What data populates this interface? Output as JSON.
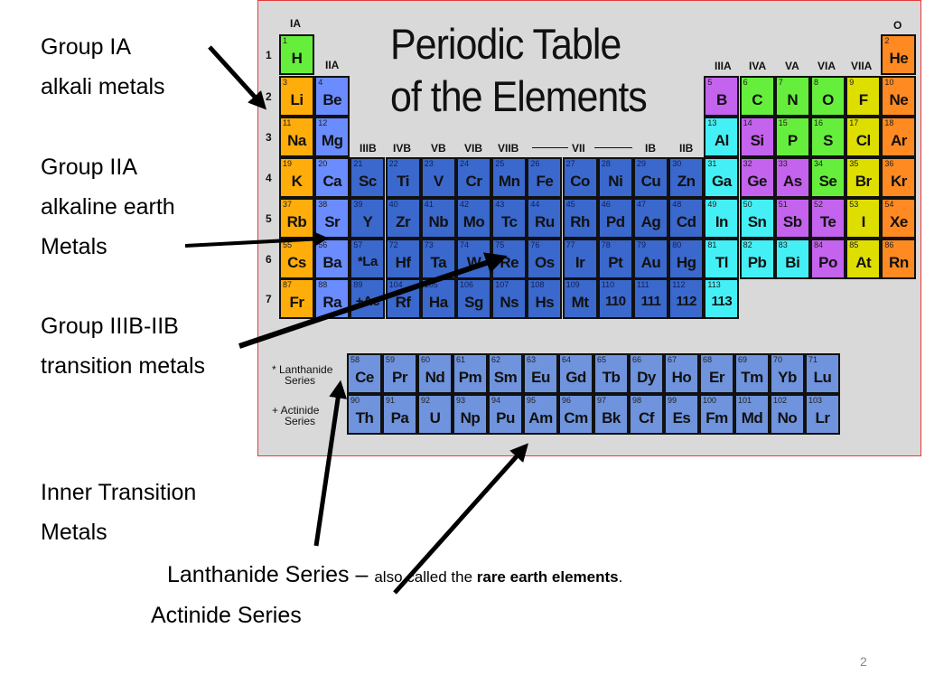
{
  "left_labels": [
    {
      "lines": [
        "Group IA",
        "alkali metals"
      ]
    },
    {
      "lines": [
        "Group IIA",
        "alkaline earth",
        "Metals"
      ]
    },
    {
      "lines": [
        "Group IIIB-IIB",
        "transition metals"
      ]
    },
    {
      "lines": [
        "Inner Transition",
        "Metals"
      ]
    }
  ],
  "bottom": {
    "lanthanide_label": "Lanthanide Series",
    "dash": " – ",
    "lanthanide_note_pre": "also called the ",
    "lanthanide_note_bold": "rare earth elements",
    "lanthanide_note_post": ".",
    "actinide_label": "Actinide Series"
  },
  "page_number": "2",
  "table": {
    "title_line1": "Periodic Table",
    "title_line2": "of the Elements",
    "group_labels": {
      "IA": "IA",
      "IIA": "IIA",
      "IIIB": "IIIB",
      "IVB": "IVB",
      "VB": "VB",
      "VIB": "VIB",
      "VIIB": "VIIB",
      "VII": "VII",
      "IB": "IB",
      "IIB": "IIB",
      "IIIA": "IIIA",
      "IVA": "IVA",
      "VA": "VA",
      "VIA": "VIA",
      "VIIA": "VIIA",
      "O": "O"
    },
    "period_labels": [
      "1",
      "2",
      "3",
      "4",
      "5",
      "6",
      "7"
    ],
    "lanthanide_series_label": [
      "* Lanthanide",
      "Series"
    ],
    "actinide_series_label": [
      "+ Actinide",
      "Series"
    ],
    "colors": {
      "green": "#66ee3c",
      "alkali": "#ffad0a",
      "alkaline": "#6a8cff",
      "transition": "#3a68cc",
      "purple": "#c463ee",
      "cyan": "#44f0f5",
      "yellow": "#dede00",
      "noble": "#ff8a22",
      "inner": "#6f93dc"
    },
    "elements": [
      [
        1,
        "H",
        1,
        1,
        "green"
      ],
      [
        2,
        "He",
        1,
        18,
        "noble"
      ],
      [
        3,
        "Li",
        2,
        1,
        "alkali"
      ],
      [
        4,
        "Be",
        2,
        2,
        "alkaline"
      ],
      [
        5,
        "B",
        2,
        13,
        "purple"
      ],
      [
        6,
        "C",
        2,
        14,
        "green"
      ],
      [
        7,
        "N",
        2,
        15,
        "green"
      ],
      [
        8,
        "O",
        2,
        16,
        "green"
      ],
      [
        9,
        "F",
        2,
        17,
        "yellow"
      ],
      [
        10,
        "Ne",
        2,
        18,
        "noble"
      ],
      [
        11,
        "Na",
        3,
        1,
        "alkali"
      ],
      [
        12,
        "Mg",
        3,
        2,
        "alkaline"
      ],
      [
        13,
        "Al",
        3,
        13,
        "cyan"
      ],
      [
        14,
        "Si",
        3,
        14,
        "purple"
      ],
      [
        15,
        "P",
        3,
        15,
        "green"
      ],
      [
        16,
        "S",
        3,
        16,
        "green"
      ],
      [
        17,
        "Cl",
        3,
        17,
        "yellow"
      ],
      [
        18,
        "Ar",
        3,
        18,
        "noble"
      ],
      [
        19,
        "K",
        4,
        1,
        "alkali"
      ],
      [
        20,
        "Ca",
        4,
        2,
        "alkaline"
      ],
      [
        21,
        "Sc",
        4,
        3,
        "transition"
      ],
      [
        22,
        "Ti",
        4,
        4,
        "transition"
      ],
      [
        23,
        "V",
        4,
        5,
        "transition"
      ],
      [
        24,
        "Cr",
        4,
        6,
        "transition"
      ],
      [
        25,
        "Mn",
        4,
        7,
        "transition"
      ],
      [
        26,
        "Fe",
        4,
        8,
        "transition"
      ],
      [
        27,
        "Co",
        4,
        9,
        "transition"
      ],
      [
        28,
        "Ni",
        4,
        10,
        "transition"
      ],
      [
        29,
        "Cu",
        4,
        11,
        "transition"
      ],
      [
        30,
        "Zn",
        4,
        12,
        "transition"
      ],
      [
        31,
        "Ga",
        4,
        13,
        "cyan"
      ],
      [
        32,
        "Ge",
        4,
        14,
        "purple"
      ],
      [
        33,
        "As",
        4,
        15,
        "purple"
      ],
      [
        34,
        "Se",
        4,
        16,
        "green"
      ],
      [
        35,
        "Br",
        4,
        17,
        "yellow"
      ],
      [
        36,
        "Kr",
        4,
        18,
        "noble"
      ],
      [
        37,
        "Rb",
        5,
        1,
        "alkali"
      ],
      [
        38,
        "Sr",
        5,
        2,
        "alkaline"
      ],
      [
        39,
        "Y",
        5,
        3,
        "transition"
      ],
      [
        40,
        "Zr",
        5,
        4,
        "transition"
      ],
      [
        41,
        "Nb",
        5,
        5,
        "transition"
      ],
      [
        42,
        "Mo",
        5,
        6,
        "transition"
      ],
      [
        43,
        "Tc",
        5,
        7,
        "transition"
      ],
      [
        44,
        "Ru",
        5,
        8,
        "transition"
      ],
      [
        45,
        "Rh",
        5,
        9,
        "transition"
      ],
      [
        46,
        "Pd",
        5,
        10,
        "transition"
      ],
      [
        47,
        "Ag",
        5,
        11,
        "transition"
      ],
      [
        48,
        "Cd",
        5,
        12,
        "transition"
      ],
      [
        49,
        "In",
        5,
        13,
        "cyan"
      ],
      [
        50,
        "Sn",
        5,
        14,
        "cyan"
      ],
      [
        51,
        "Sb",
        5,
        15,
        "purple"
      ],
      [
        52,
        "Te",
        5,
        16,
        "purple"
      ],
      [
        53,
        "I",
        5,
        17,
        "yellow"
      ],
      [
        54,
        "Xe",
        5,
        18,
        "noble"
      ],
      [
        55,
        "Cs",
        6,
        1,
        "alkali"
      ],
      [
        56,
        "Ba",
        6,
        2,
        "alkaline"
      ],
      [
        57,
        "*La",
        6,
        3,
        "transition"
      ],
      [
        72,
        "Hf",
        6,
        4,
        "transition"
      ],
      [
        73,
        "Ta",
        6,
        5,
        "transition"
      ],
      [
        74,
        "W",
        6,
        6,
        "transition"
      ],
      [
        75,
        "Re",
        6,
        7,
        "transition"
      ],
      [
        76,
        "Os",
        6,
        8,
        "transition"
      ],
      [
        77,
        "Ir",
        6,
        9,
        "transition"
      ],
      [
        78,
        "Pt",
        6,
        10,
        "transition"
      ],
      [
        79,
        "Au",
        6,
        11,
        "transition"
      ],
      [
        80,
        "Hg",
        6,
        12,
        "transition"
      ],
      [
        81,
        "Tl",
        6,
        13,
        "cyan"
      ],
      [
        82,
        "Pb",
        6,
        14,
        "cyan"
      ],
      [
        83,
        "Bi",
        6,
        15,
        "cyan"
      ],
      [
        84,
        "Po",
        6,
        16,
        "purple"
      ],
      [
        85,
        "At",
        6,
        17,
        "yellow"
      ],
      [
        86,
        "Rn",
        6,
        18,
        "noble"
      ],
      [
        87,
        "Fr",
        7,
        1,
        "alkali"
      ],
      [
        88,
        "Ra",
        7,
        2,
        "alkaline"
      ],
      [
        89,
        "+Ac",
        7,
        3,
        "transition"
      ],
      [
        104,
        "Rf",
        7,
        4,
        "transition"
      ],
      [
        105,
        "Ha",
        7,
        5,
        "transition"
      ],
      [
        106,
        "Sg",
        7,
        6,
        "transition"
      ],
      [
        107,
        "Ns",
        7,
        7,
        "transition"
      ],
      [
        108,
        "Hs",
        7,
        8,
        "transition"
      ],
      [
        109,
        "Mt",
        7,
        9,
        "transition"
      ],
      [
        110,
        "110",
        7,
        10,
        "transition"
      ],
      [
        111,
        "111",
        7,
        11,
        "transition"
      ],
      [
        112,
        "112",
        7,
        12,
        "transition"
      ],
      [
        113,
        "113",
        7,
        13,
        "cyan"
      ]
    ],
    "lanthanides": [
      [
        58,
        "Ce"
      ],
      [
        59,
        "Pr"
      ],
      [
        60,
        "Nd"
      ],
      [
        61,
        "Pm"
      ],
      [
        62,
        "Sm"
      ],
      [
        63,
        "Eu"
      ],
      [
        64,
        "Gd"
      ],
      [
        65,
        "Tb"
      ],
      [
        66,
        "Dy"
      ],
      [
        67,
        "Ho"
      ],
      [
        68,
        "Er"
      ],
      [
        69,
        "Tm"
      ],
      [
        70,
        "Yb"
      ],
      [
        71,
        "Lu"
      ]
    ],
    "actinides": [
      [
        90,
        "Th"
      ],
      [
        91,
        "Pa"
      ],
      [
        92,
        "U"
      ],
      [
        93,
        "Np"
      ],
      [
        94,
        "Pu"
      ],
      [
        95,
        "Am"
      ],
      [
        96,
        "Cm"
      ],
      [
        97,
        "Bk"
      ],
      [
        98,
        "Cf"
      ],
      [
        99,
        "Es"
      ],
      [
        100,
        "Fm"
      ],
      [
        101,
        "Md"
      ],
      [
        102,
        "No"
      ],
      [
        103,
        "Lr"
      ]
    ]
  }
}
